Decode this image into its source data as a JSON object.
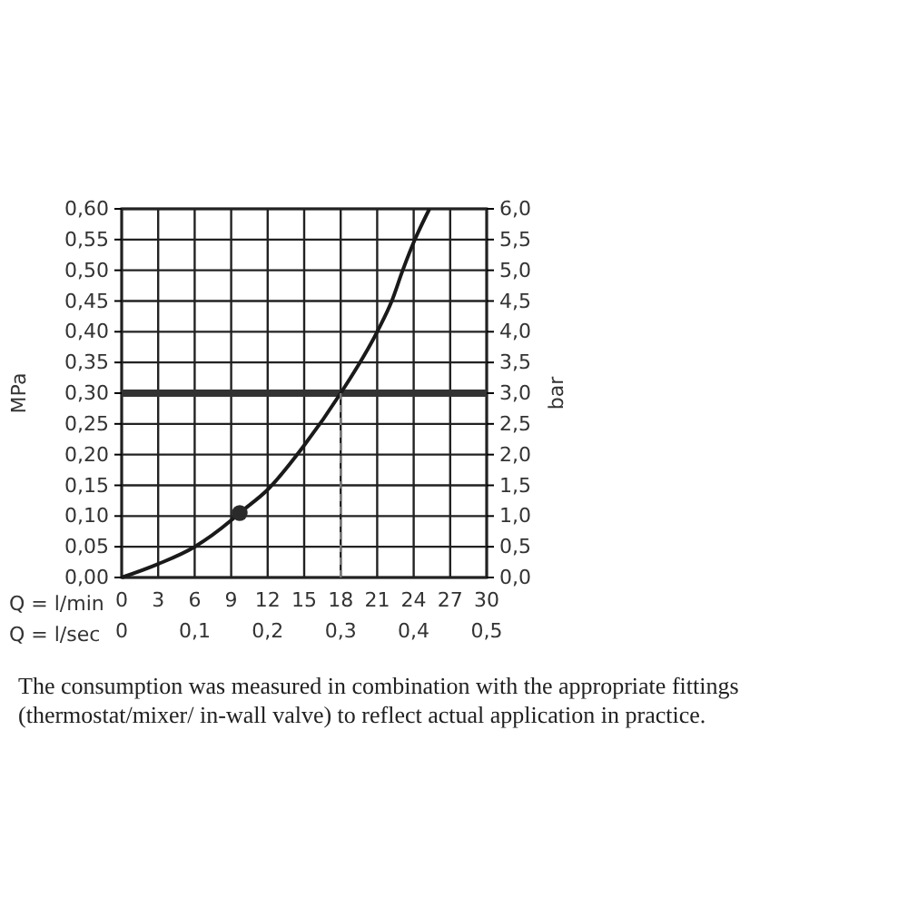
{
  "chart_data": {
    "type": "line",
    "xlabel": "Q = l/min",
    "ylabel": "MPa",
    "y2label": "bar",
    "x2label": "Q = l/sec",
    "xlim": [
      0,
      30
    ],
    "xticks": [
      0,
      3,
      6,
      9,
      12,
      15,
      18,
      21,
      24,
      27,
      30
    ],
    "x2lim": [
      0,
      0.5
    ],
    "x2ticks": [
      0,
      {
        "value": 0.1,
        "label": "0,1"
      },
      {
        "value": 0.2,
        "label": "0,2"
      },
      {
        "value": 0.3,
        "label": "0,3"
      },
      {
        "value": 0.4,
        "label": "0,4"
      },
      {
        "value": 0.5,
        "label": "0,5"
      }
    ],
    "ylim": [
      0,
      0.6
    ],
    "yticks": [
      {
        "value": 0,
        "label": "0,00"
      },
      {
        "value": 0.05,
        "label": "0,05"
      },
      {
        "value": 0.1,
        "label": "0,10"
      },
      {
        "value": 0.15,
        "label": "0,15"
      },
      {
        "value": 0.2,
        "label": "0,20"
      },
      {
        "value": 0.25,
        "label": "0,25"
      },
      {
        "value": 0.3,
        "label": "0,30"
      },
      {
        "value": 0.35,
        "label": "0,35"
      },
      {
        "value": 0.4,
        "label": "0,40"
      },
      {
        "value": 0.45,
        "label": "0,45"
      },
      {
        "value": 0.5,
        "label": "0,50"
      },
      {
        "value": 0.55,
        "label": "0,55"
      },
      {
        "value": 0.6,
        "label": "0,60"
      }
    ],
    "y2lim": [
      0,
      6
    ],
    "y2ticks": [
      {
        "value": 0,
        "label": "0,0"
      },
      {
        "value": 0.5,
        "label": "0,5"
      },
      {
        "value": 1,
        "label": "1,0"
      },
      {
        "value": 1.5,
        "label": "1,5"
      },
      {
        "value": 2,
        "label": "2,0"
      },
      {
        "value": 2.5,
        "label": "2,5"
      },
      {
        "value": 3,
        "label": "3,0"
      },
      {
        "value": 3.5,
        "label": "3,5"
      },
      {
        "value": 4,
        "label": "4,0"
      },
      {
        "value": 4.5,
        "label": "4,5"
      },
      {
        "value": 5,
        "label": "5,0"
      },
      {
        "value": 5.5,
        "label": "5,5"
      },
      {
        "value": 6,
        "label": "6,0"
      }
    ],
    "grid": true,
    "series": [
      {
        "color": "#1a1a1a",
        "x": [
          0,
          3,
          6,
          9,
          9.7,
          12,
          15,
          18,
          21,
          22.2,
          23.1,
          24.1,
          25.3
        ],
        "values": [
          0,
          0.022,
          0.05,
          0.093,
          0.105,
          0.143,
          0.215,
          0.3,
          0.4,
          0.45,
          0.5,
          0.55,
          0.6
        ]
      },
      {
        "type": "scatter",
        "color": "#2a2a2a",
        "marker": "circle",
        "x": [
          9.7
        ],
        "values": [
          0.105
        ]
      },
      {
        "type": "line",
        "color": "#777777",
        "line_style": "dashed",
        "x": [
          18,
          18
        ],
        "values": [
          0,
          0.3
        ]
      }
    ],
    "ref_lines": [
      {
        "axis": "y",
        "value": 0.3,
        "color": "#333333"
      }
    ],
    "annotations": [
      "The consumption was measured in combination with the appropriate fittings (thermostat/mixer/ in-wall valve) to reflect actual application in practice."
    ]
  }
}
